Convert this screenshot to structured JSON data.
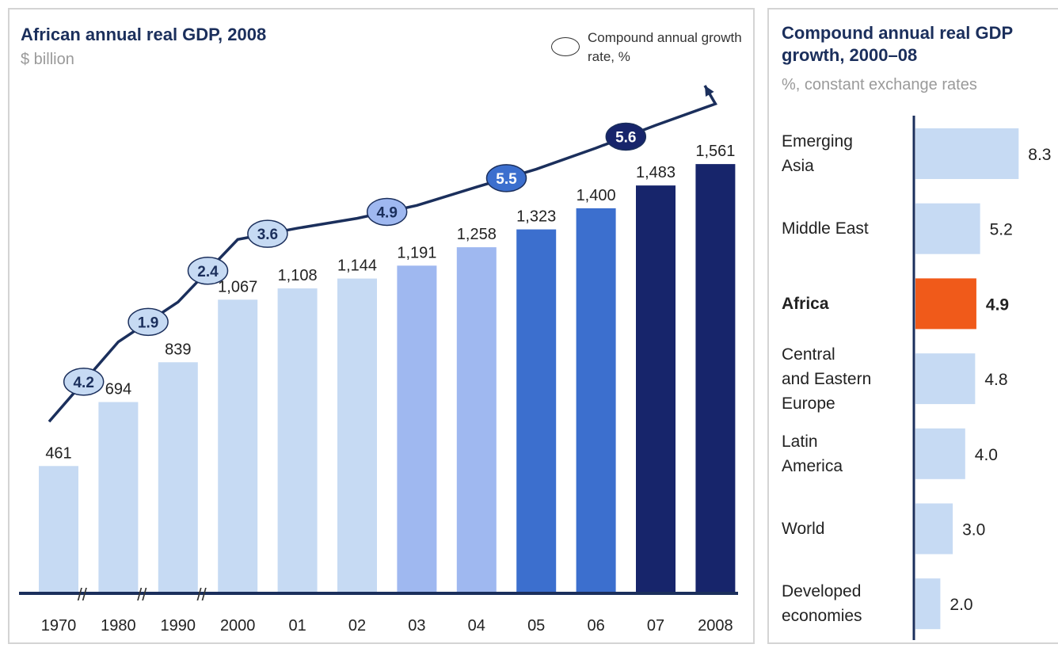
{
  "left_chart": {
    "title": "African annual real GDP, 2008",
    "subtitle": "$ billion",
    "legend": "Compound annual growth rate, %"
  },
  "right_chart": {
    "title": "Compound annual real GDP growth, 2000–08",
    "subtitle": "%, constant exchange rates"
  },
  "colors": {
    "light": "#c6daf3",
    "mid_light": "#9fb8f0",
    "mid": "#3c6fce",
    "dark": "#17256b",
    "highlight": "#f05a1a",
    "axis": "#1b2f5c"
  },
  "chart_data": [
    {
      "type": "bar",
      "title": "African annual real GDP, 2008",
      "ylabel": "$ billion",
      "categories": [
        "1970",
        "1980",
        "1990",
        "2000",
        "01",
        "02",
        "03",
        "04",
        "05",
        "06",
        "07",
        "2008"
      ],
      "values": [
        461,
        694,
        839,
        1067,
        1108,
        1144,
        1191,
        1258,
        1323,
        1400,
        1483,
        1561
      ],
      "value_labels": [
        "461",
        "694",
        "839",
        "1,067",
        "1,108",
        "1,144",
        "1,191",
        "1,258",
        "1,323",
        "1,400",
        "1,483",
        "1,561"
      ],
      "bar_colors": [
        "#c6daf3",
        "#c6daf3",
        "#c6daf3",
        "#c6daf3",
        "#c6daf3",
        "#c6daf3",
        "#9fb8f0",
        "#9fb8f0",
        "#3c6fce",
        "#3c6fce",
        "#17256b",
        "#17256b"
      ],
      "growth_rates": [
        {
          "between": [
            "1970",
            "1980"
          ],
          "value": "4.2",
          "style": "light"
        },
        {
          "between": [
            "1980",
            "1990"
          ],
          "value": "1.9",
          "style": "light"
        },
        {
          "between": [
            "1990",
            "2000"
          ],
          "value": "2.4",
          "style": "light"
        },
        {
          "between": [
            "2000",
            "01"
          ],
          "value": "3.6",
          "style": "light"
        },
        {
          "between": [
            "02",
            "03"
          ],
          "value": "4.9",
          "style": "mid_light"
        },
        {
          "between": [
            "04",
            "05"
          ],
          "value": "5.5",
          "style": "mid"
        },
        {
          "between": [
            "06",
            "07"
          ],
          "value": "5.6",
          "style": "dark"
        }
      ],
      "legend": "Compound annual growth rate, %"
    },
    {
      "type": "bar",
      "orientation": "horizontal",
      "title": "Compound annual real GDP growth, 2000–08",
      "subtitle": "%, constant exchange rates",
      "categories": [
        "Emerging Asia",
        "Middle East",
        "Africa",
        "Central and Eastern Europe",
        "Latin America",
        "World",
        "Developed economies"
      ],
      "label_lines": [
        [
          "Emerging",
          "Asia"
        ],
        [
          "Middle East"
        ],
        [
          "Africa"
        ],
        [
          "Central",
          "and Eastern",
          "Europe"
        ],
        [
          "Latin",
          "America"
        ],
        [
          "World"
        ],
        [
          "Developed",
          "economies"
        ]
      ],
      "values": [
        8.3,
        5.2,
        4.9,
        4.8,
        4.0,
        3.0,
        2.0
      ],
      "value_labels": [
        "8.3",
        "5.2",
        "4.9",
        "4.8",
        "4.0",
        "3.0",
        "2.0"
      ],
      "highlight": "Africa"
    }
  ]
}
